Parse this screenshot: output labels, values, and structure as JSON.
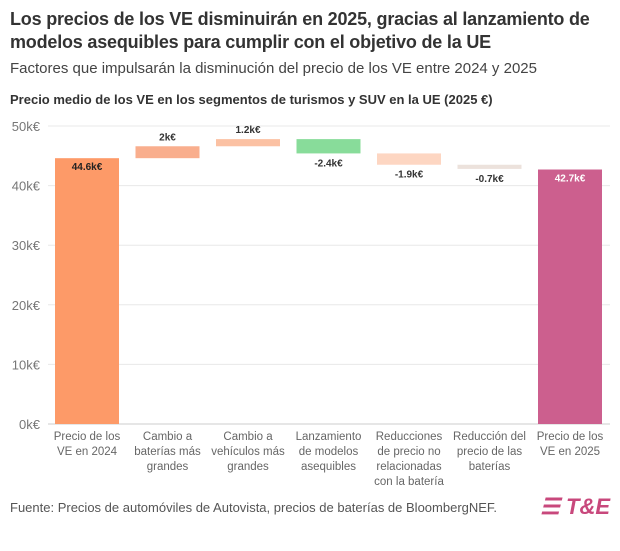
{
  "title": "Los precios de los VE disminuirán en 2025, gracias al lanzamiento de modelos asequibles para cumplir con el objetivo de la UE",
  "subtitle": "Factores que impulsarán la disminución del precio de los VE entre 2024 y 2025",
  "source": "Fuente: Precios de automóviles de Autovista, precios de baterías de BloombergNEF.",
  "logo": "T&E",
  "chart_data": {
    "type": "waterfall",
    "title": "Precio medio de los VE en los segmentos de turismos y SUV en la UE (2025 €)",
    "ylim": [
      0,
      50
    ],
    "yticks": [
      0,
      10,
      20,
      30,
      40,
      50
    ],
    "ytick_labels": [
      "0k€",
      "10k€",
      "20k€",
      "30k€",
      "40k€",
      "50k€"
    ],
    "grid": true,
    "categories": [
      [
        "Precio de los",
        "VE en 2024"
      ],
      [
        "Cambio a",
        "baterías más",
        "grandes"
      ],
      [
        "Cambio a",
        "vehículos más",
        "grandes"
      ],
      [
        "Lanzamiento",
        "de modelos",
        "asequibles"
      ],
      [
        "Reducciones",
        "de precio no",
        "relacionadas",
        "con la batería"
      ],
      [
        "Reducción del",
        "precio de las",
        "baterías"
      ],
      [
        "Precio de los",
        "VE en 2025"
      ]
    ],
    "values": [
      44.6,
      2,
      1.2,
      -2.4,
      -1.9,
      -0.7,
      42.7
    ],
    "kinds": [
      "total",
      "delta",
      "delta",
      "delta",
      "delta",
      "delta",
      "total"
    ],
    "labels": [
      "44.6k€",
      "2k€",
      "1.2k€",
      "-2.4k€",
      "-1.9k€",
      "-0.7k€",
      "42.7k€"
    ],
    "colors": [
      "#fd9a68",
      "#f9ae8d",
      "#fbc1a3",
      "#88dc9a",
      "#fdd6c2",
      "#ece2dc",
      "#cc5f8e"
    ]
  }
}
